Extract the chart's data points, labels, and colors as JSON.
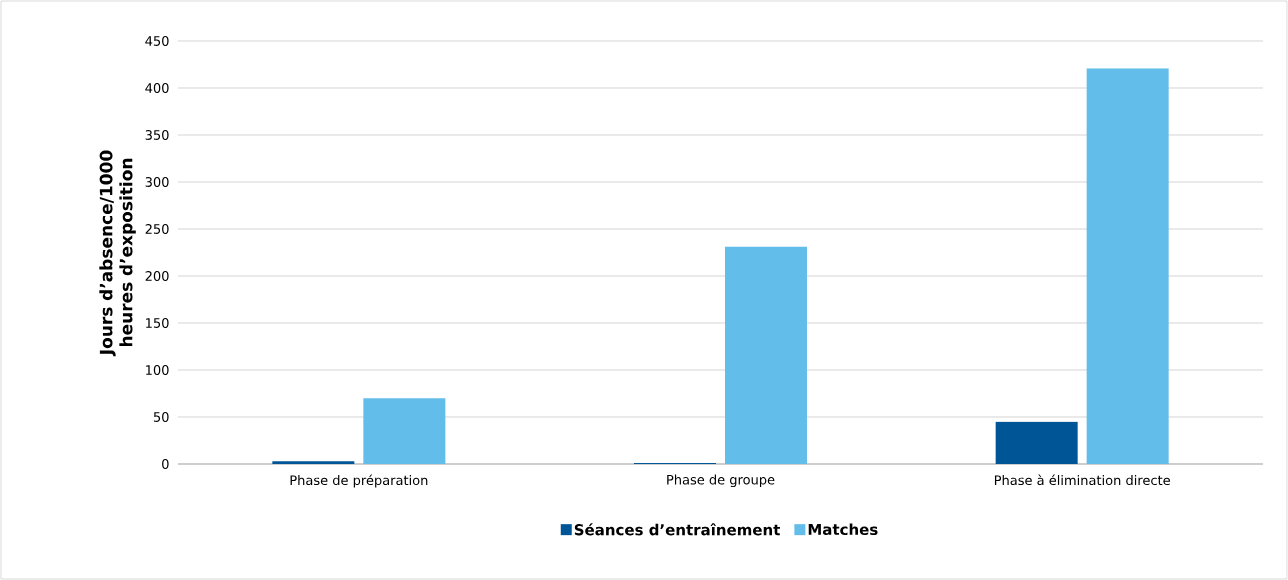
{
  "chart_data": {
    "type": "bar",
    "ylabel": "Jours d’absence/1000 heures d’exposition",
    "categories": [
      "Phase de préparation",
      "Phase de groupe",
      "Phase à élimination directe"
    ],
    "series": [
      {
        "name": "Séances d’entraînement",
        "color": "#005596",
        "values": [
          3,
          1,
          45
        ]
      },
      {
        "name": "Matches",
        "color": "#63bdea",
        "values": [
          70,
          231,
          421
        ]
      }
    ],
    "ylim": [
      0,
      450
    ],
    "yticks": [
      0,
      50,
      100,
      150,
      200,
      250,
      300,
      350,
      400,
      450
    ],
    "grid": "y",
    "legend": "bottom"
  }
}
